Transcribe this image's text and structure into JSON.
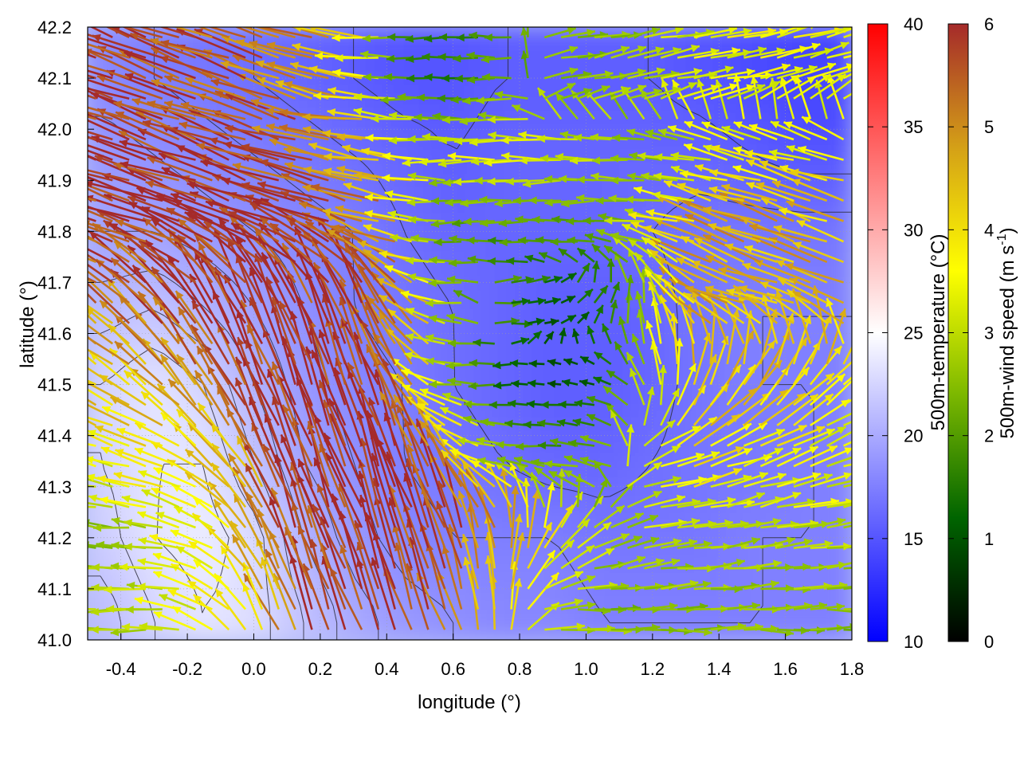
{
  "chart_data": {
    "type": "heatmap",
    "overlay": "vector-field",
    "title": "",
    "xlabel": "longitude (°)",
    "ylabel": "latitude (°)",
    "xlim": [
      -0.5,
      1.8
    ],
    "ylim": [
      41.0,
      42.2
    ],
    "x_ticks": [
      "-0.4",
      "-0.2",
      "0.0",
      "0.2",
      "0.4",
      "0.6",
      "0.8",
      "1.0",
      "1.2",
      "1.4",
      "1.6",
      "1.8"
    ],
    "y_ticks": [
      "41.0",
      "41.1",
      "41.2",
      "41.3",
      "41.4",
      "41.5",
      "41.6",
      "41.7",
      "41.8",
      "41.9",
      "42.0",
      "42.1",
      "42.2"
    ],
    "grid": true,
    "temperature_colorbar": {
      "label": "500m-temperature (°C)",
      "range": [
        10,
        40
      ],
      "ticks": [
        "10",
        "15",
        "20",
        "25",
        "30",
        "35",
        "40"
      ],
      "colors": [
        "#0000ff",
        "#ffffff",
        "#ff0000"
      ]
    },
    "wind_colorbar": {
      "label_main": "500m-wind speed (m s",
      "label_sup": "-1",
      "label_end": ")",
      "range": [
        0,
        6
      ],
      "ticks": [
        "0",
        "1",
        "2",
        "3",
        "4",
        "5",
        "6"
      ],
      "colors": [
        "#000000",
        "#006400",
        "#7cb800",
        "#ffff00",
        "#d4a017",
        "#a52a2a"
      ]
    },
    "temperature_field": {
      "lat": [
        41.05,
        41.2,
        41.35,
        41.5,
        41.65,
        41.8,
        41.95,
        42.1
      ],
      "lon": [
        -0.45,
        -0.3,
        -0.15,
        0.0,
        0.15,
        0.3,
        0.45,
        0.6,
        0.75,
        0.9,
        1.05,
        1.2,
        1.35,
        1.5,
        1.65,
        1.78
      ],
      "values": [
        [
          21,
          22.5,
          23.5,
          23,
          21.5,
          20,
          19,
          18.5,
          18,
          18,
          17.5,
          17.5,
          17.5,
          17.5,
          17.5,
          17.5
        ],
        [
          22,
          23.5,
          24,
          23,
          20.5,
          19,
          18,
          17.5,
          17.5,
          17.5,
          17,
          17,
          17,
          17.5,
          17.5,
          17.5
        ],
        [
          22.5,
          23.5,
          23.5,
          21.5,
          19.5,
          18.5,
          17.5,
          17,
          16.5,
          16,
          16,
          16.5,
          17,
          17,
          17.5,
          17.5
        ],
        [
          22.5,
          23.5,
          22.5,
          20.5,
          19,
          18,
          17.5,
          16.5,
          16,
          15.5,
          15.5,
          16,
          17,
          17.5,
          17.5,
          17.5
        ],
        [
          21,
          21.5,
          20.5,
          19.5,
          18.5,
          17.5,
          17,
          16.5,
          16,
          15.5,
          15.5,
          16,
          17,
          17.5,
          17.5,
          17.5
        ],
        [
          19.5,
          19.5,
          19,
          18.5,
          18,
          17.5,
          16.5,
          16,
          16,
          16,
          16,
          16.5,
          17,
          17,
          17,
          17
        ],
        [
          19,
          18.5,
          18,
          17.5,
          17,
          16.5,
          16,
          15.5,
          16,
          16,
          16,
          16,
          16,
          15.5,
          15,
          15
        ],
        [
          18,
          17.5,
          17,
          16.5,
          16,
          15.5,
          15,
          15,
          15.5,
          15.5,
          15.5,
          15.5,
          15,
          14.5,
          14,
          14
        ]
      ]
    },
    "wind_field": {
      "lat": [
        41.05,
        41.2,
        41.35,
        41.5,
        41.65,
        41.8,
        41.95,
        42.1
      ],
      "lon": [
        -0.45,
        -0.3,
        -0.15,
        0.0,
        0.15,
        0.3,
        0.45,
        0.6,
        0.75,
        0.9,
        1.05,
        1.2,
        1.35,
        1.5,
        1.65,
        1.78
      ],
      "speed": [
        [
          3,
          3,
          3.5,
          4,
          5.5,
          6,
          6,
          5.5,
          4,
          3,
          2.5,
          2.5,
          2.5,
          2.5,
          2.5,
          2.5
        ],
        [
          2.5,
          3,
          3.5,
          4.5,
          6,
          6,
          6,
          6,
          5,
          3.5,
          2.5,
          3,
          3,
          3,
          3,
          3
        ],
        [
          3.5,
          4,
          4,
          5,
          6,
          6,
          6,
          5,
          3,
          2,
          2.5,
          3.5,
          4,
          3.5,
          3.5,
          3
        ],
        [
          4.5,
          4.5,
          5,
          6,
          6,
          6,
          5,
          3,
          1.5,
          1,
          1,
          3,
          4.5,
          4.5,
          4,
          4
        ],
        [
          5,
          5.5,
          6,
          6,
          6,
          6,
          5.5,
          3,
          1.5,
          1,
          1.5,
          3,
          4.5,
          4.5,
          4.5,
          4.5
        ],
        [
          6,
          6,
          6,
          6,
          6,
          5.5,
          4.5,
          2,
          2,
          2,
          2,
          3,
          4.5,
          5,
          4.5,
          4.5
        ],
        [
          6,
          6,
          6,
          6,
          5.5,
          5,
          4.5,
          3,
          3.5,
          3.5,
          3,
          2.5,
          3,
          3.5,
          3.5,
          3.5
        ],
        [
          6,
          6,
          5.5,
          5.5,
          5,
          4.5,
          2,
          1.5,
          2,
          2.5,
          2.5,
          3,
          3.5,
          3.5,
          3.5,
          3.5
        ]
      ],
      "direction_deg": [
        [
          180,
          180,
          160,
          120,
          110,
          110,
          110,
          110,
          90,
          0,
          0,
          0,
          0,
          0,
          0,
          0
        ],
        [
          175,
          175,
          160,
          120,
          110,
          110,
          110,
          110,
          100,
          60,
          20,
          10,
          10,
          10,
          10,
          10
        ],
        [
          165,
          160,
          140,
          120,
          110,
          110,
          110,
          120,
          170,
          175,
          170,
          20,
          20,
          20,
          20,
          20
        ],
        [
          150,
          140,
          125,
          115,
          110,
          110,
          115,
          175,
          180,
          180,
          170,
          110,
          70,
          60,
          50,
          40
        ],
        [
          140,
          135,
          125,
          115,
          115,
          115,
          120,
          175,
          0,
          10,
          60,
          100,
          150,
          160,
          160,
          160
        ],
        [
          160,
          160,
          160,
          160,
          160,
          160,
          170,
          180,
          180,
          180,
          180,
          170,
          160,
          160,
          160,
          160
        ],
        [
          160,
          160,
          160,
          160,
          165,
          170,
          170,
          180,
          180,
          180,
          180,
          175,
          170,
          165,
          165,
          165
        ],
        [
          160,
          160,
          160,
          160,
          165,
          170,
          180,
          180,
          180,
          10,
          10,
          10,
          10,
          10,
          15,
          20
        ]
      ]
    }
  }
}
